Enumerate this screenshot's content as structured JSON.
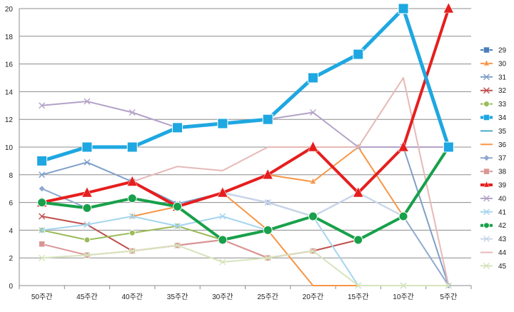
{
  "chart_data": {
    "type": "line",
    "categories": [
      "50주간",
      "45주간",
      "40주간",
      "35주간",
      "30주간",
      "25주간",
      "20주간",
      "15주간",
      "10주간",
      "5주간"
    ],
    "ylim": [
      0,
      20
    ],
    "yticks": [
      0,
      2,
      4,
      6,
      8,
      10,
      12,
      14,
      16,
      18,
      20
    ],
    "grid": true,
    "legend_position": "right",
    "series": [
      {
        "name": "29",
        "color": "#4a7ebb",
        "marker": "square",
        "values": [
          null,
          null,
          null,
          null,
          null,
          null,
          null,
          null,
          null,
          null
        ]
      },
      {
        "name": "30",
        "color": "#f79646",
        "marker": "triangle",
        "values": [
          null,
          null,
          5,
          5.7,
          6.7,
          8,
          7.5,
          10,
          5,
          10
        ]
      },
      {
        "name": "31",
        "color": "#7f9fc9",
        "marker": "x",
        "values": [
          8,
          8.9,
          7.5,
          5.9,
          6.7,
          6,
          5,
          6.7,
          10,
          0
        ]
      },
      {
        "name": "32",
        "color": "#c0504d",
        "marker": "x",
        "values": [
          5,
          4.4,
          2.5,
          2.9,
          3.3,
          2,
          2.5,
          3.3,
          null,
          null
        ]
      },
      {
        "name": "33",
        "color": "#9bbb59",
        "marker": "circle",
        "values": [
          4,
          3.3,
          3.8,
          4.3,
          3.3,
          4,
          5,
          null,
          null,
          null
        ]
      },
      {
        "name": "34",
        "color": "#1ea7e1",
        "marker": "square",
        "width": 5,
        "values": [
          9,
          10,
          10,
          11.4,
          11.7,
          12,
          15,
          16.7,
          20,
          10
        ]
      },
      {
        "name": "35",
        "color": "#4bacc6",
        "marker": "none",
        "values": [
          null,
          null,
          null,
          null,
          null,
          null,
          null,
          null,
          null,
          null
        ]
      },
      {
        "name": "36",
        "color": "#f79646",
        "marker": "none",
        "values": [
          6,
          6.7,
          7.5,
          5.7,
          6.7,
          4,
          0,
          0,
          null,
          null
        ]
      },
      {
        "name": "37",
        "color": "#8fa9cf",
        "marker": "diamond",
        "values": [
          7,
          5.6,
          6.3,
          5.7,
          6.7,
          6,
          5,
          6.7,
          5,
          0
        ]
      },
      {
        "name": "38",
        "color": "#d99694",
        "marker": "square",
        "values": [
          3,
          2.2,
          2.5,
          2.9,
          3.3,
          2,
          2.5,
          null,
          null,
          null
        ]
      },
      {
        "name": "39",
        "color": "#e61e1e",
        "marker": "triangle",
        "width": 4,
        "values": [
          6,
          6.7,
          7.5,
          5.7,
          6.7,
          8,
          10,
          6.7,
          10,
          20
        ]
      },
      {
        "name": "40",
        "color": "#b3a2c7",
        "marker": "x",
        "values": [
          13,
          13.3,
          12.5,
          11.4,
          11.7,
          12,
          12.5,
          10,
          10,
          10
        ]
      },
      {
        "name": "41",
        "color": "#a5d5ee",
        "marker": "x",
        "values": [
          4,
          4.4,
          5,
          4.3,
          5,
          4,
          5,
          0,
          0,
          0
        ]
      },
      {
        "name": "42",
        "color": "#18a04a",
        "marker": "circle",
        "width": 4,
        "values": [
          6,
          5.6,
          6.3,
          5.7,
          3.3,
          4,
          5,
          3.3,
          5,
          10
        ]
      },
      {
        "name": "43",
        "color": "#c9d6ea",
        "marker": "x",
        "values": [
          null,
          null,
          6.3,
          5.7,
          6.7,
          6,
          5,
          6.7,
          5,
          10
        ]
      },
      {
        "name": "44",
        "color": "#e6b9b8",
        "marker": "none",
        "values": [
          null,
          null,
          7.5,
          8.6,
          8.3,
          10,
          10,
          10,
          15,
          0
        ]
      },
      {
        "name": "45",
        "color": "#d7e4bd",
        "marker": "x",
        "values": [
          2,
          2.2,
          2.5,
          2.9,
          1.7,
          2,
          2.5,
          0,
          0,
          0
        ]
      }
    ]
  }
}
